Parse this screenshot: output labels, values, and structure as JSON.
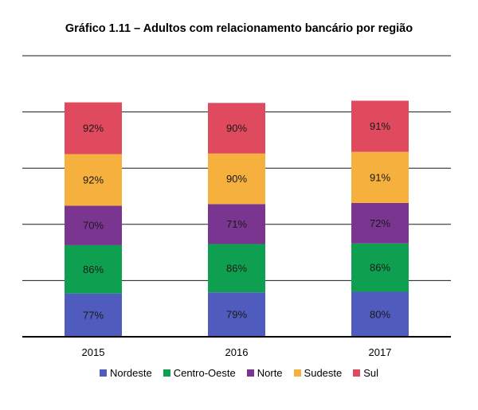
{
  "chart_data": {
    "type": "bar",
    "stacked": true,
    "title": "Gráfico 1.11 – Adultos com relacionamento bancário por região",
    "categories": [
      "2015",
      "2016",
      "2017"
    ],
    "series": [
      {
        "name": "Nordeste",
        "values": [
          77,
          79,
          80
        ],
        "labels": [
          "77%",
          "79%",
          "80%"
        ],
        "color": "#4f5bbd"
      },
      {
        "name": "Centro-Oeste",
        "values": [
          86,
          86,
          86
        ],
        "labels": [
          "86%",
          "86%",
          "86%"
        ],
        "color": "#0ea050"
      },
      {
        "name": "Norte",
        "values": [
          70,
          71,
          72
        ],
        "labels": [
          "70%",
          "71%",
          "72%"
        ],
        "color": "#7a3590"
      },
      {
        "name": "Sudeste",
        "values": [
          92,
          90,
          91
        ],
        "labels": [
          "92%",
          "90%",
          "91%"
        ],
        "color": "#f5b03d"
      },
      {
        "name": "Sul",
        "values": [
          92,
          90,
          91
        ],
        "labels": [
          "92%",
          "90%",
          "91%"
        ],
        "color": "#e04a5f"
      }
    ],
    "ylim": [
      0,
      500
    ],
    "grid": true,
    "legend_position": "bottom"
  }
}
